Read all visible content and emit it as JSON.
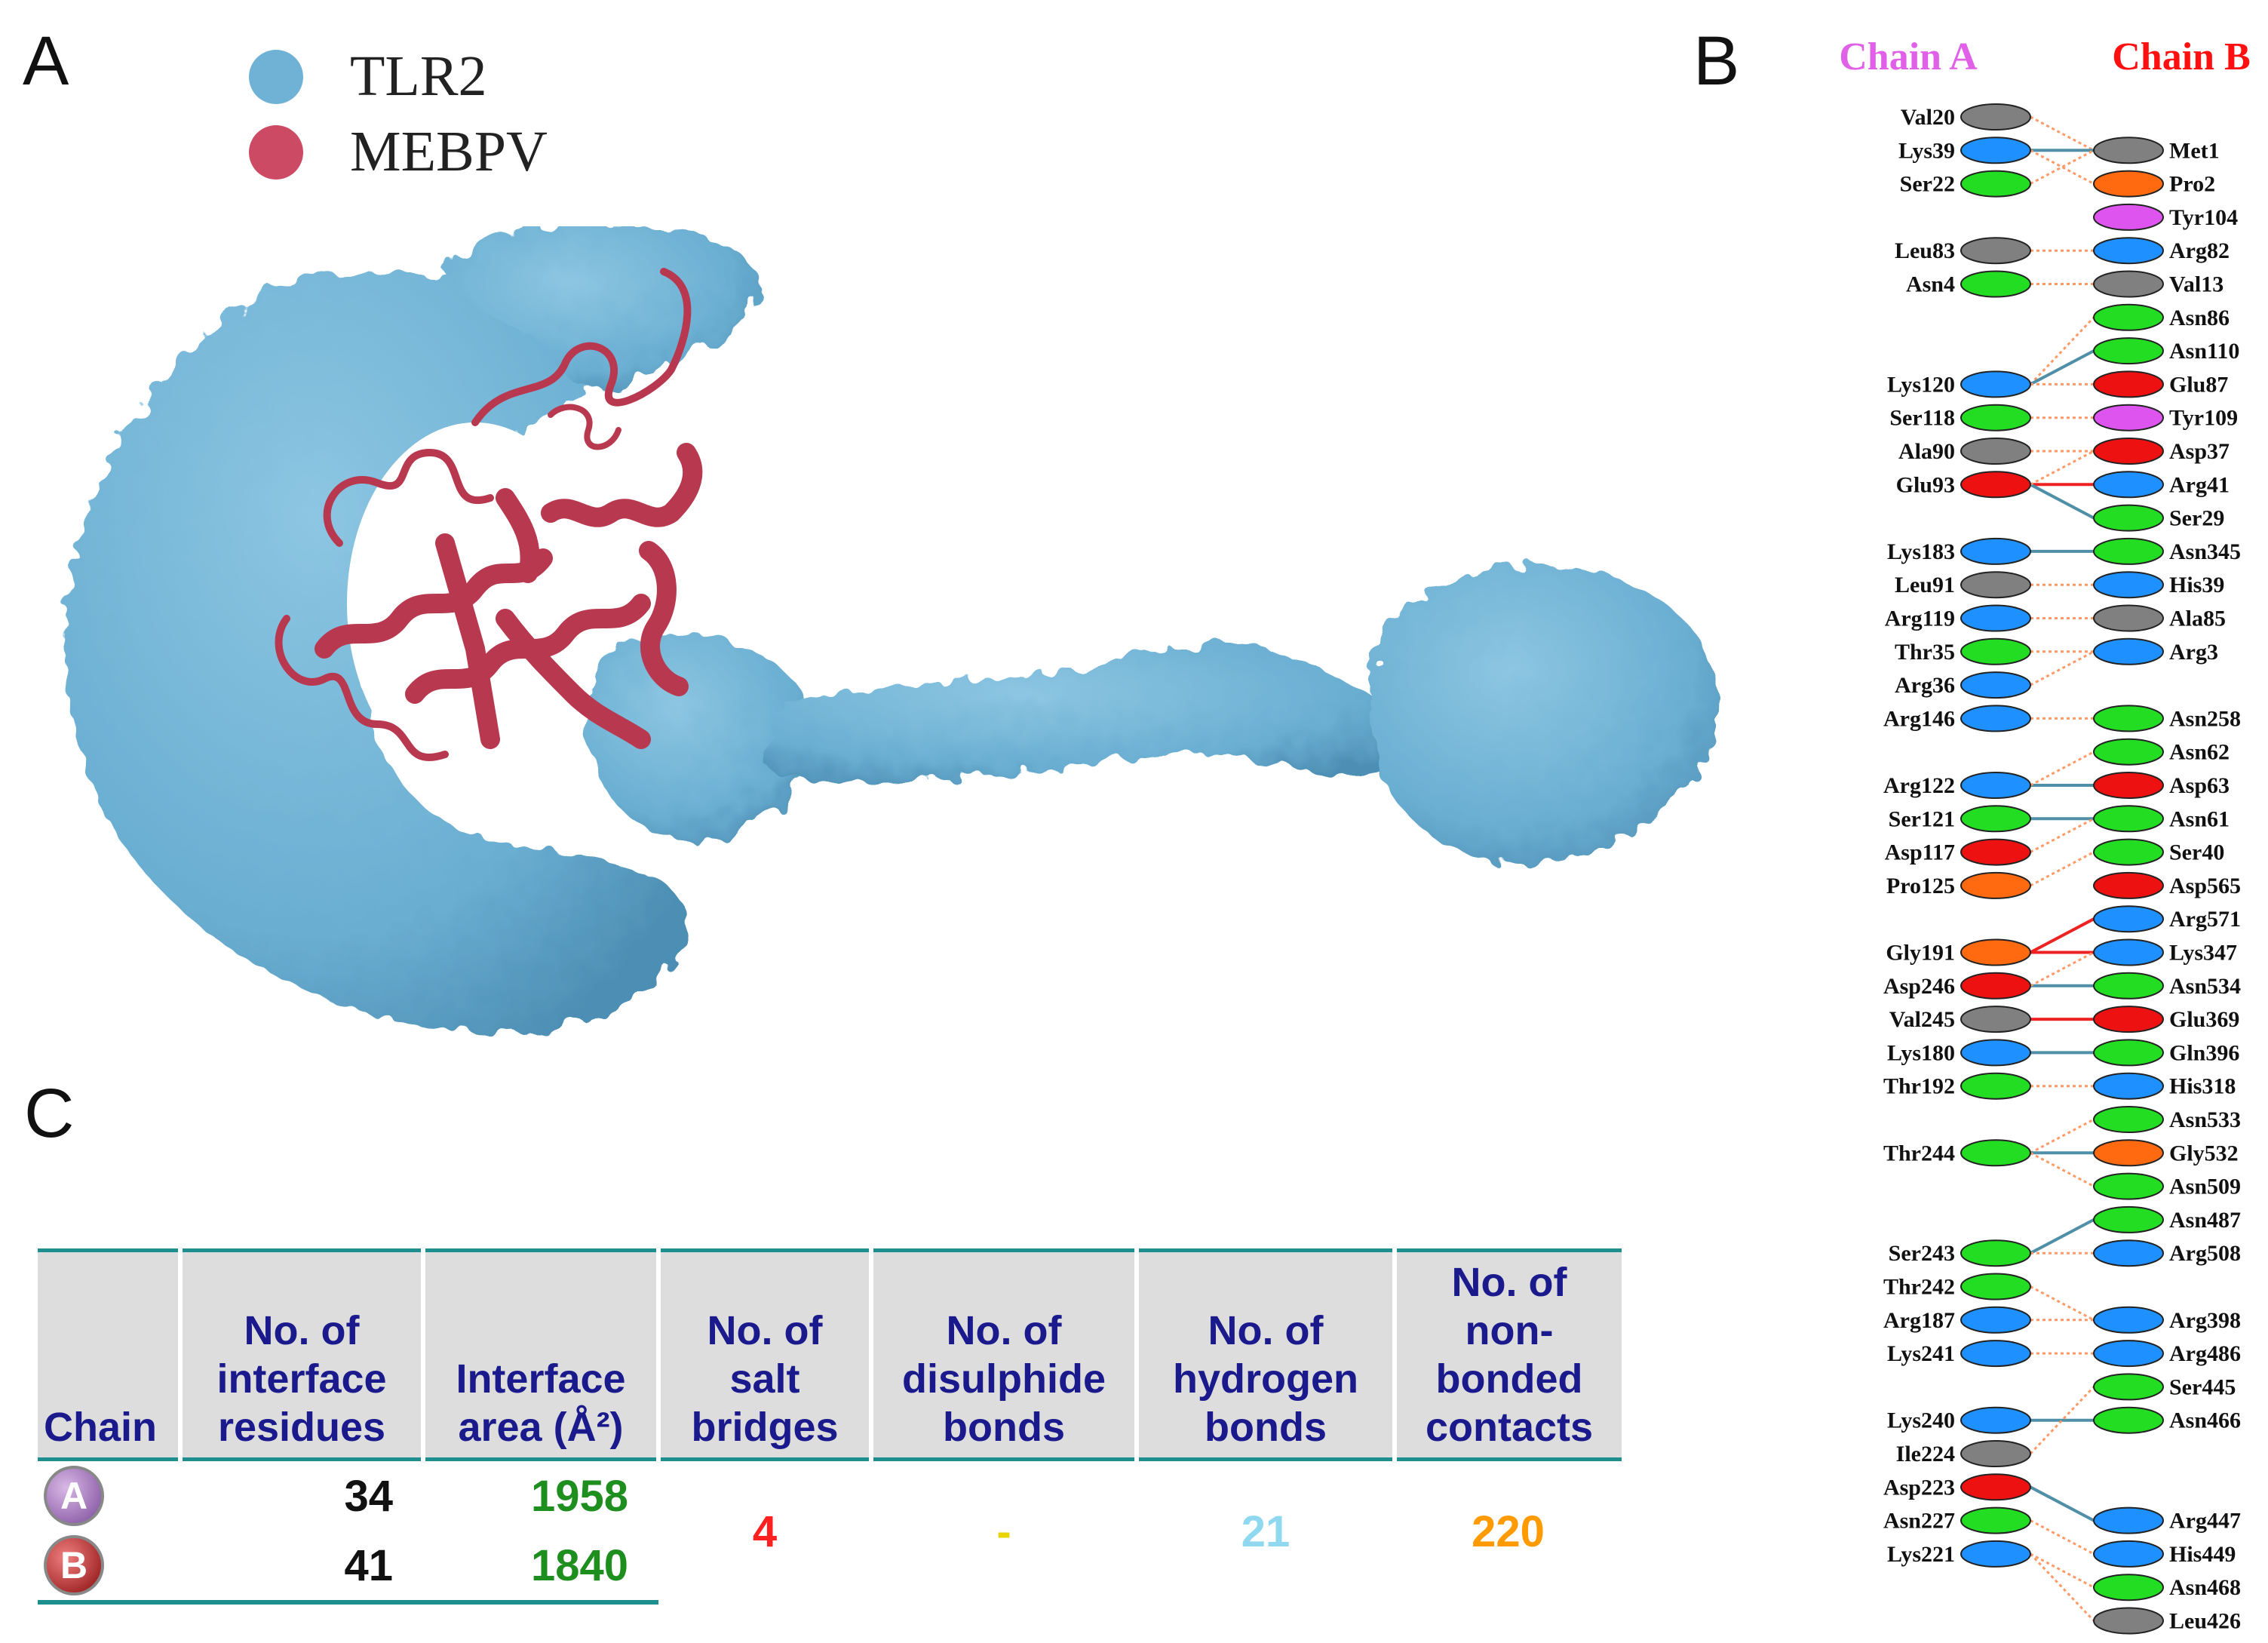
{
  "panels": {
    "a": "A",
    "b": "B",
    "c": "C"
  },
  "legend": [
    {
      "label": "TLR2",
      "color": "#6fb2d6"
    },
    {
      "label": "MEBPV",
      "color": "#cc4a64"
    }
  ],
  "colors": {
    "tlr2": "#6fb2d6",
    "mebpv": "#b8394f",
    "chain_a_title": "#e060e8",
    "chain_b_title": "#ff1010",
    "teal_rule": "#1e8f8f"
  },
  "interaction": {
    "chain_a_title": "Chain A",
    "chain_b_title": "Chain B",
    "residue_colors": {
      "grey": "#808080",
      "blue": "#1e90ff",
      "green": "#22dd22",
      "red": "#ee1111",
      "orange": "#ff6a10",
      "magenta": "#dd55ee"
    },
    "chain_a": [
      {
        "label": "Val20",
        "slot": 0,
        "color": "grey"
      },
      {
        "label": "Lys39",
        "slot": 1,
        "color": "blue"
      },
      {
        "label": "Ser22",
        "slot": 2,
        "color": "green"
      },
      {
        "label": "Leu83",
        "slot": 4,
        "color": "grey"
      },
      {
        "label": "Asn4",
        "slot": 5,
        "color": "green"
      },
      {
        "label": "Lys120",
        "slot": 8,
        "color": "blue"
      },
      {
        "label": "Ser118",
        "slot": 9,
        "color": "green"
      },
      {
        "label": "Ala90",
        "slot": 10,
        "color": "grey"
      },
      {
        "label": "Glu93",
        "slot": 11,
        "color": "red"
      },
      {
        "label": "Lys183",
        "slot": 13,
        "color": "blue"
      },
      {
        "label": "Leu91",
        "slot": 14,
        "color": "grey"
      },
      {
        "label": "Arg119",
        "slot": 15,
        "color": "blue"
      },
      {
        "label": "Thr35",
        "slot": 16,
        "color": "green"
      },
      {
        "label": "Arg36",
        "slot": 17,
        "color": "blue"
      },
      {
        "label": "Arg146",
        "slot": 18,
        "color": "blue"
      },
      {
        "label": "Arg122",
        "slot": 20,
        "color": "blue"
      },
      {
        "label": "Ser121",
        "slot": 21,
        "color": "green"
      },
      {
        "label": "Asp117",
        "slot": 22,
        "color": "red"
      },
      {
        "label": "Pro125",
        "slot": 23,
        "color": "orange"
      },
      {
        "label": "Gly191",
        "slot": 25,
        "color": "orange"
      },
      {
        "label": "Asp246",
        "slot": 26,
        "color": "red"
      },
      {
        "label": "Val245",
        "slot": 27,
        "color": "grey"
      },
      {
        "label": "Lys180",
        "slot": 28,
        "color": "blue"
      },
      {
        "label": "Thr192",
        "slot": 29,
        "color": "green"
      },
      {
        "label": "Thr244",
        "slot": 31,
        "color": "green"
      },
      {
        "label": "Ser243",
        "slot": 34,
        "color": "green"
      },
      {
        "label": "Thr242",
        "slot": 35,
        "color": "green"
      },
      {
        "label": "Arg187",
        "slot": 36,
        "color": "blue"
      },
      {
        "label": "Lys241",
        "slot": 37,
        "color": "blue"
      },
      {
        "label": "Lys240",
        "slot": 39,
        "color": "blue"
      },
      {
        "label": "Ile224",
        "slot": 40,
        "color": "grey"
      },
      {
        "label": "Asp223",
        "slot": 41,
        "color": "red"
      },
      {
        "label": "Asn227",
        "slot": 42,
        "color": "green"
      },
      {
        "label": "Lys221",
        "slot": 43,
        "color": "blue"
      }
    ],
    "chain_b": [
      {
        "label": "Met1",
        "slot": 1,
        "color": "grey"
      },
      {
        "label": "Pro2",
        "slot": 2,
        "color": "orange"
      },
      {
        "label": "Tyr104",
        "slot": 3,
        "color": "magenta"
      },
      {
        "label": "Arg82",
        "slot": 4,
        "color": "blue"
      },
      {
        "label": "Val13",
        "slot": 5,
        "color": "grey"
      },
      {
        "label": "Asn86",
        "slot": 6,
        "color": "green"
      },
      {
        "label": "Asn110",
        "slot": 7,
        "color": "green"
      },
      {
        "label": "Glu87",
        "slot": 8,
        "color": "red"
      },
      {
        "label": "Tyr109",
        "slot": 9,
        "color": "magenta"
      },
      {
        "label": "Asp37",
        "slot": 10,
        "color": "red"
      },
      {
        "label": "Arg41",
        "slot": 11,
        "color": "blue"
      },
      {
        "label": "Ser29",
        "slot": 12,
        "color": "green"
      },
      {
        "label": "Asn345",
        "slot": 13,
        "color": "green"
      },
      {
        "label": "His39",
        "slot": 14,
        "color": "blue"
      },
      {
        "label": "Ala85",
        "slot": 15,
        "color": "grey"
      },
      {
        "label": "Arg3",
        "slot": 16,
        "color": "blue"
      },
      {
        "label": "Asn258",
        "slot": 18,
        "color": "green"
      },
      {
        "label": "Asn62",
        "slot": 19,
        "color": "green"
      },
      {
        "label": "Asp63",
        "slot": 20,
        "color": "red"
      },
      {
        "label": "Asn61",
        "slot": 21,
        "color": "green"
      },
      {
        "label": "Ser40",
        "slot": 22,
        "color": "green"
      },
      {
        "label": "Asp565",
        "slot": 23,
        "color": "red"
      },
      {
        "label": "Arg571",
        "slot": 24,
        "color": "blue"
      },
      {
        "label": "Lys347",
        "slot": 25,
        "color": "blue"
      },
      {
        "label": "Asn534",
        "slot": 26,
        "color": "green"
      },
      {
        "label": "Glu369",
        "slot": 27,
        "color": "red"
      },
      {
        "label": "Gln396",
        "slot": 28,
        "color": "green"
      },
      {
        "label": "His318",
        "slot": 29,
        "color": "blue"
      },
      {
        "label": "Asn533",
        "slot": 30,
        "color": "green"
      },
      {
        "label": "Gly532",
        "slot": 31,
        "color": "orange"
      },
      {
        "label": "Asn509",
        "slot": 32,
        "color": "green"
      },
      {
        "label": "Asn487",
        "slot": 33,
        "color": "green"
      },
      {
        "label": "Arg508",
        "slot": 34,
        "color": "blue"
      },
      {
        "label": "Arg398",
        "slot": 36,
        "color": "blue"
      },
      {
        "label": "Arg486",
        "slot": 37,
        "color": "blue"
      },
      {
        "label": "Ser445",
        "slot": 38,
        "color": "green"
      },
      {
        "label": "Asn466",
        "slot": 39,
        "color": "green"
      },
      {
        "label": "Arg447",
        "slot": 42,
        "color": "blue"
      },
      {
        "label": "His449",
        "slot": 43,
        "color": "blue"
      },
      {
        "label": "Asn468",
        "slot": 44,
        "color": "green"
      },
      {
        "label": "Leu426",
        "slot": 45,
        "color": "grey"
      }
    ],
    "links": [
      [
        0,
        1,
        "o"
      ],
      [
        1,
        1,
        "b"
      ],
      [
        1,
        2,
        "o"
      ],
      [
        2,
        1,
        "o"
      ],
      [
        4,
        4,
        "o"
      ],
      [
        5,
        5,
        "o"
      ],
      [
        8,
        6,
        "o"
      ],
      [
        8,
        7,
        "b"
      ],
      [
        8,
        8,
        "o"
      ],
      [
        9,
        9,
        "o"
      ],
      [
        10,
        10,
        "o"
      ],
      [
        11,
        11,
        "r"
      ],
      [
        11,
        12,
        "b"
      ],
      [
        11,
        10,
        "o"
      ],
      [
        13,
        13,
        "b"
      ],
      [
        14,
        14,
        "o"
      ],
      [
        15,
        15,
        "o"
      ],
      [
        16,
        16,
        "o"
      ],
      [
        17,
        16,
        "o"
      ],
      [
        18,
        18,
        "o"
      ],
      [
        20,
        20,
        "b"
      ],
      [
        20,
        19,
        "o"
      ],
      [
        21,
        21,
        "b"
      ],
      [
        22,
        21,
        "o"
      ],
      [
        23,
        22,
        "o"
      ],
      [
        25,
        24,
        "r"
      ],
      [
        25,
        25,
        "r"
      ],
      [
        26,
        26,
        "b"
      ],
      [
        26,
        25,
        "o"
      ],
      [
        27,
        27,
        "r"
      ],
      [
        28,
        28,
        "b"
      ],
      [
        29,
        29,
        "o"
      ],
      [
        31,
        30,
        "o"
      ],
      [
        31,
        31,
        "b"
      ],
      [
        31,
        32,
        "o"
      ],
      [
        34,
        33,
        "b"
      ],
      [
        34,
        34,
        "o"
      ],
      [
        35,
        36,
        "o"
      ],
      [
        36,
        36,
        "o"
      ],
      [
        37,
        37,
        "o"
      ],
      [
        39,
        39,
        "b"
      ],
      [
        40,
        38,
        "o"
      ],
      [
        41,
        42,
        "b"
      ],
      [
        42,
        43,
        "o"
      ],
      [
        43,
        44,
        "o"
      ],
      [
        43,
        45,
        "o"
      ]
    ]
  },
  "table": {
    "headers": {
      "chain": "Chain",
      "residues": [
        "No. of",
        "interface",
        "residues"
      ],
      "area": [
        "Interface",
        "area (Å²)"
      ],
      "salt": [
        "No. of",
        "salt",
        "bridges"
      ],
      "disulphide": [
        "No. of",
        "disulphide",
        "bonds"
      ],
      "hbonds": [
        "No. of",
        "hydrogen",
        "bonds"
      ],
      "nonbonded": [
        "No. of",
        "non-bonded",
        "contacts"
      ]
    },
    "rows": [
      {
        "chain": "A",
        "residues": "34",
        "area": "1958"
      },
      {
        "chain": "B",
        "residues": "41",
        "area": "1840"
      }
    ],
    "shared": {
      "salt": "4",
      "disulphide": "-",
      "hbonds": "21",
      "nonbonded": "220"
    },
    "value_colors": {
      "residues": "#111111",
      "area": "#1e8f1e",
      "salt": "#ff2020",
      "disulphide": "#e8d400",
      "hbonds": "#8fd8f0",
      "nonbonded": "#ff9a00"
    }
  }
}
